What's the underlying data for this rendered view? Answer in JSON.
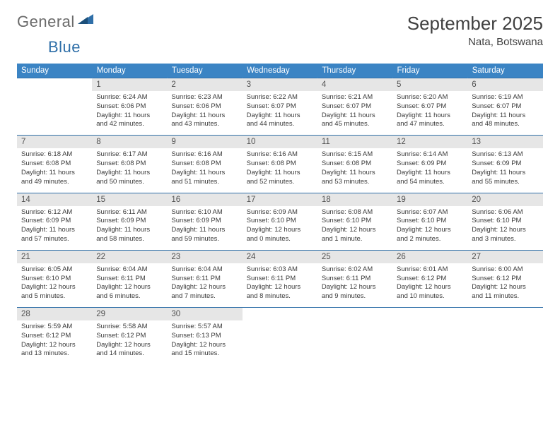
{
  "logo": {
    "text1": "General",
    "text2": "Blue"
  },
  "title": "September 2025",
  "location": "Nata, Botswana",
  "colors": {
    "header_bg": "#3b84c4",
    "header_text": "#ffffff",
    "daynum_bg": "#e6e6e6",
    "rule": "#2f6fa8",
    "logo_gray": "#6a6a6a",
    "logo_blue": "#2f6fa8",
    "body_text": "#3a3a3a"
  },
  "day_headers": [
    "Sunday",
    "Monday",
    "Tuesday",
    "Wednesday",
    "Thursday",
    "Friday",
    "Saturday"
  ],
  "weeks": [
    [
      {
        "n": "",
        "sr": "",
        "ss": "",
        "dl": ""
      },
      {
        "n": "1",
        "sr": "6:24 AM",
        "ss": "6:06 PM",
        "dl": "11 hours and 42 minutes."
      },
      {
        "n": "2",
        "sr": "6:23 AM",
        "ss": "6:06 PM",
        "dl": "11 hours and 43 minutes."
      },
      {
        "n": "3",
        "sr": "6:22 AM",
        "ss": "6:07 PM",
        "dl": "11 hours and 44 minutes."
      },
      {
        "n": "4",
        "sr": "6:21 AM",
        "ss": "6:07 PM",
        "dl": "11 hours and 45 minutes."
      },
      {
        "n": "5",
        "sr": "6:20 AM",
        "ss": "6:07 PM",
        "dl": "11 hours and 47 minutes."
      },
      {
        "n": "6",
        "sr": "6:19 AM",
        "ss": "6:07 PM",
        "dl": "11 hours and 48 minutes."
      }
    ],
    [
      {
        "n": "7",
        "sr": "6:18 AM",
        "ss": "6:08 PM",
        "dl": "11 hours and 49 minutes."
      },
      {
        "n": "8",
        "sr": "6:17 AM",
        "ss": "6:08 PM",
        "dl": "11 hours and 50 minutes."
      },
      {
        "n": "9",
        "sr": "6:16 AM",
        "ss": "6:08 PM",
        "dl": "11 hours and 51 minutes."
      },
      {
        "n": "10",
        "sr": "6:16 AM",
        "ss": "6:08 PM",
        "dl": "11 hours and 52 minutes."
      },
      {
        "n": "11",
        "sr": "6:15 AM",
        "ss": "6:08 PM",
        "dl": "11 hours and 53 minutes."
      },
      {
        "n": "12",
        "sr": "6:14 AM",
        "ss": "6:09 PM",
        "dl": "11 hours and 54 minutes."
      },
      {
        "n": "13",
        "sr": "6:13 AM",
        "ss": "6:09 PM",
        "dl": "11 hours and 55 minutes."
      }
    ],
    [
      {
        "n": "14",
        "sr": "6:12 AM",
        "ss": "6:09 PM",
        "dl": "11 hours and 57 minutes."
      },
      {
        "n": "15",
        "sr": "6:11 AM",
        "ss": "6:09 PM",
        "dl": "11 hours and 58 minutes."
      },
      {
        "n": "16",
        "sr": "6:10 AM",
        "ss": "6:09 PM",
        "dl": "11 hours and 59 minutes."
      },
      {
        "n": "17",
        "sr": "6:09 AM",
        "ss": "6:10 PM",
        "dl": "12 hours and 0 minutes."
      },
      {
        "n": "18",
        "sr": "6:08 AM",
        "ss": "6:10 PM",
        "dl": "12 hours and 1 minute."
      },
      {
        "n": "19",
        "sr": "6:07 AM",
        "ss": "6:10 PM",
        "dl": "12 hours and 2 minutes."
      },
      {
        "n": "20",
        "sr": "6:06 AM",
        "ss": "6:10 PM",
        "dl": "12 hours and 3 minutes."
      }
    ],
    [
      {
        "n": "21",
        "sr": "6:05 AM",
        "ss": "6:10 PM",
        "dl": "12 hours and 5 minutes."
      },
      {
        "n": "22",
        "sr": "6:04 AM",
        "ss": "6:11 PM",
        "dl": "12 hours and 6 minutes."
      },
      {
        "n": "23",
        "sr": "6:04 AM",
        "ss": "6:11 PM",
        "dl": "12 hours and 7 minutes."
      },
      {
        "n": "24",
        "sr": "6:03 AM",
        "ss": "6:11 PM",
        "dl": "12 hours and 8 minutes."
      },
      {
        "n": "25",
        "sr": "6:02 AM",
        "ss": "6:11 PM",
        "dl": "12 hours and 9 minutes."
      },
      {
        "n": "26",
        "sr": "6:01 AM",
        "ss": "6:12 PM",
        "dl": "12 hours and 10 minutes."
      },
      {
        "n": "27",
        "sr": "6:00 AM",
        "ss": "6:12 PM",
        "dl": "12 hours and 11 minutes."
      }
    ],
    [
      {
        "n": "28",
        "sr": "5:59 AM",
        "ss": "6:12 PM",
        "dl": "12 hours and 13 minutes."
      },
      {
        "n": "29",
        "sr": "5:58 AM",
        "ss": "6:12 PM",
        "dl": "12 hours and 14 minutes."
      },
      {
        "n": "30",
        "sr": "5:57 AM",
        "ss": "6:13 PM",
        "dl": "12 hours and 15 minutes."
      },
      {
        "n": "",
        "sr": "",
        "ss": "",
        "dl": ""
      },
      {
        "n": "",
        "sr": "",
        "ss": "",
        "dl": ""
      },
      {
        "n": "",
        "sr": "",
        "ss": "",
        "dl": ""
      },
      {
        "n": "",
        "sr": "",
        "ss": "",
        "dl": ""
      }
    ]
  ],
  "labels": {
    "sunrise": "Sunrise:",
    "sunset": "Sunset:",
    "daylight": "Daylight:"
  }
}
